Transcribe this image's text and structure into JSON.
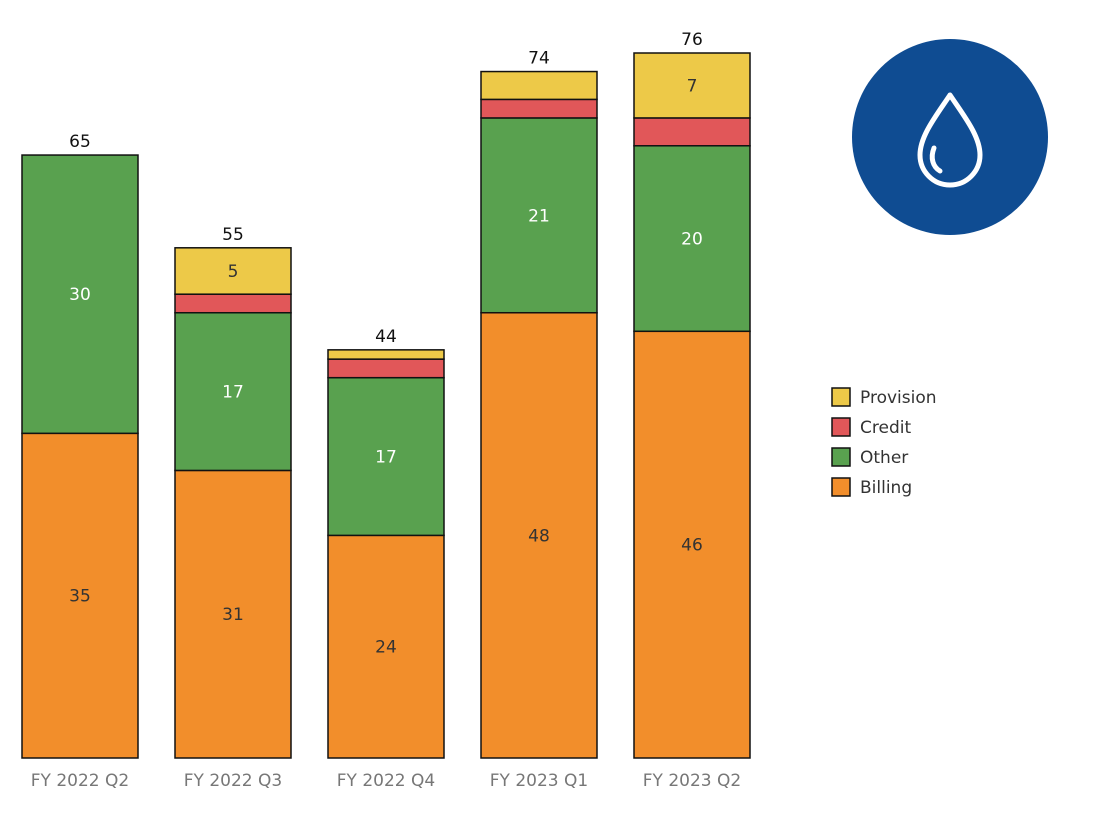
{
  "chart_data": {
    "type": "bar",
    "stacked": true,
    "categories": [
      "FY 2022 Q2",
      "FY 2022 Q3",
      "FY 2022 Q4",
      "FY 2023 Q1",
      "FY 2023 Q2"
    ],
    "totals": [
      65,
      55,
      44,
      74,
      76
    ],
    "series": [
      {
        "name": "Billing",
        "color": "#f28e2b",
        "values": [
          35,
          31,
          24,
          48,
          46
        ],
        "label_color": "#333333"
      },
      {
        "name": "Other",
        "color": "#59a14f",
        "values": [
          30,
          17,
          17,
          21,
          20
        ],
        "label_color": "#ffffff"
      },
      {
        "name": "Credit",
        "color": "#e15759",
        "values": [
          0,
          2,
          2,
          2,
          3
        ],
        "label_color": "#ffffff"
      },
      {
        "name": "Provision",
        "color": "#edc948",
        "values": [
          0,
          5,
          1,
          3,
          7
        ],
        "label_color": "#333333"
      }
    ],
    "value_labels": [
      [
        "35",
        "31",
        "24",
        "48",
        "46"
      ],
      [
        "30",
        "17",
        "17",
        "21",
        "20"
      ],
      [
        "",
        "",
        "",
        "",
        ""
      ],
      [
        "",
        "5",
        "",
        "",
        "7"
      ]
    ],
    "legend": {
      "placement": "right",
      "entries": [
        "Provision",
        "Credit",
        "Other",
        "Billing"
      ]
    },
    "ylim": [
      0,
      76
    ],
    "grid": false,
    "title": "",
    "xlabel": "",
    "ylabel": ""
  },
  "icon": {
    "name": "water-drop-icon",
    "background": "#0f4c92",
    "stroke": "#ffffff"
  }
}
